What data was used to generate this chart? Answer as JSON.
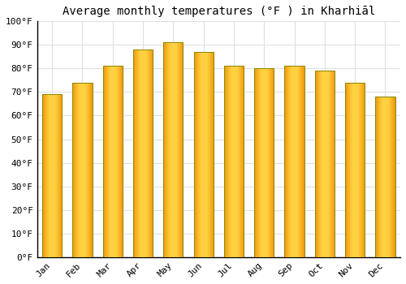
{
  "title": "Average monthly temperatures (°F ) in Kharhiāl",
  "months": [
    "Jan",
    "Feb",
    "Mar",
    "Apr",
    "May",
    "Jun",
    "Jul",
    "Aug",
    "Sep",
    "Oct",
    "Nov",
    "Dec"
  ],
  "values": [
    69,
    74,
    81,
    88,
    91,
    87,
    81,
    80,
    81,
    79,
    74,
    68
  ],
  "bar_color_left": "#F5A000",
  "bar_color_mid": "#FFD040",
  "bar_color_right": "#F5A000",
  "bar_edge_color": "#888800",
  "background_color": "#FFFFFF",
  "grid_color": "#E0E0E0",
  "ylim": [
    0,
    100
  ],
  "yticks": [
    0,
    10,
    20,
    30,
    40,
    50,
    60,
    70,
    80,
    90,
    100
  ],
  "ytick_labels": [
    "0°F",
    "10°F",
    "20°F",
    "30°F",
    "40°F",
    "50°F",
    "60°F",
    "70°F",
    "80°F",
    "90°F",
    "100°F"
  ],
  "title_fontsize": 10,
  "tick_fontsize": 8,
  "font_family": "monospace",
  "bar_width": 0.65
}
